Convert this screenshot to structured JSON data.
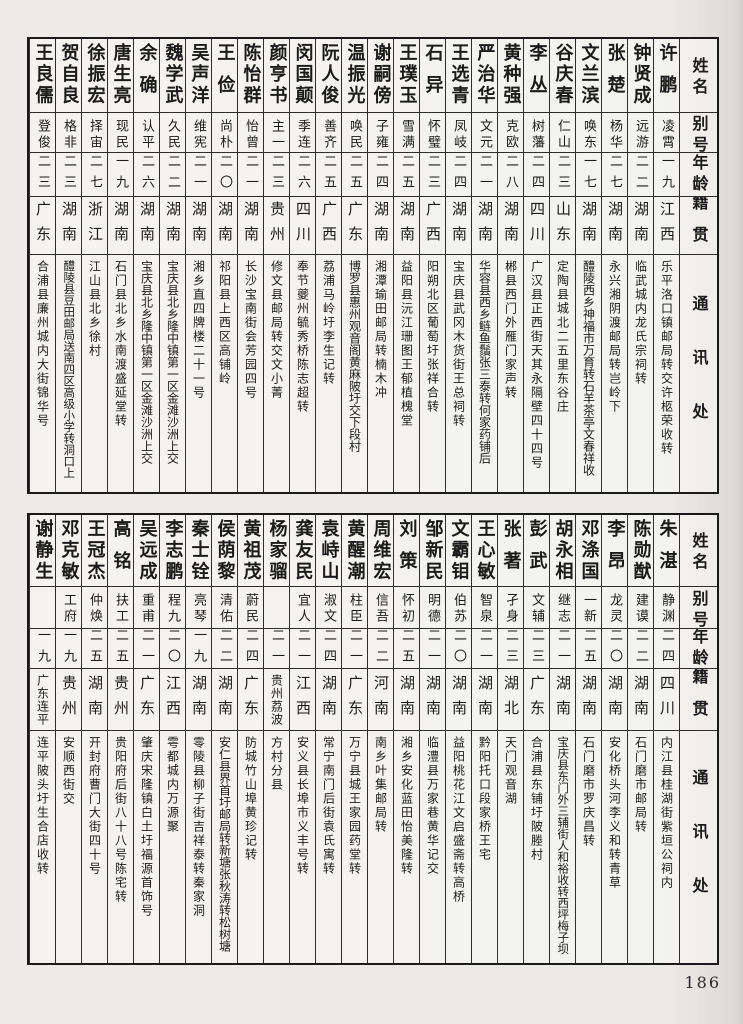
{
  "page": {
    "page_number": "186",
    "headers": [
      "姓名",
      "别号",
      "年龄",
      "籍贯",
      "通讯处"
    ]
  },
  "tables": [
    {
      "entries": [
        {
          "name": "许鹏",
          "alias": "凌霄",
          "age": "一九",
          "origin": "江西",
          "address": "乐平洛口镇邮局转交许柩荣收转"
        },
        {
          "name": "钟贤成",
          "alias": "远游",
          "age": "二二",
          "origin": "湖南",
          "address": "临武城内龙氏宗祠转"
        },
        {
          "name": "张楚",
          "alias": "杨华",
          "age": "二七",
          "origin": "湖南",
          "address": "永兴湘阴渡邮局转岂岭下"
        },
        {
          "name": "文兰滨",
          "alias": "唤东",
          "age": "一七",
          "origin": "湖南",
          "address": "醴陵西乡神福市万育转石羊茶亭文春祥收"
        },
        {
          "name": "谷庆春",
          "alias": "仁山",
          "age": "二三",
          "origin": "山东",
          "address": "定陶县城北二五里东谷庄"
        },
        {
          "name": "李丛",
          "alias": "树藩",
          "age": "二四",
          "origin": "四川",
          "address": "广汉县正西街天其永隔壁四十四号"
        },
        {
          "name": "黄种强",
          "alias": "克欧",
          "age": "二八",
          "origin": "湖南",
          "address": "郴县西门外雁门家声转"
        },
        {
          "name": "严治华",
          "alias": "文元",
          "age": "二一",
          "origin": "湖南",
          "address": "华容县西乡鲢鱼鬚张三泰转何家药铺后"
        },
        {
          "name": "王选青",
          "alias": "凤岐",
          "age": "二四",
          "origin": "湖南",
          "address": "宝庆县武冈木货街王总祠转"
        },
        {
          "name": "石异",
          "alias": "怀璧",
          "age": "二三",
          "origin": "广西",
          "address": "阳朔北区葡萄圩张祥合转"
        },
        {
          "name": "王璞玉",
          "alias": "雪满",
          "age": "二五",
          "origin": "湖南",
          "address": "益阳县沅江珊图王郁植槐堂"
        },
        {
          "name": "谢嗣傍",
          "alias": "子雍",
          "age": "二四",
          "origin": "湖南",
          "address": "湘潭瑜田邮局转楠木冲"
        },
        {
          "name": "温振光",
          "alias": "唤民",
          "age": "二五",
          "origin": "广东",
          "address": "博罗县惠州观音阁黄麻陂圩交下段村"
        },
        {
          "name": "阮人俊",
          "alias": "善齐",
          "age": "二五",
          "origin": "广西",
          "address": "荔浦马岭圩李生记转"
        },
        {
          "name": "闵国颠",
          "alias": "季连",
          "age": "二六",
          "origin": "四川",
          "address": "奉节夔州毓秀桥陈志超转"
        },
        {
          "name": "颜亨书",
          "alias": "主一",
          "age": "二三",
          "origin": "贵州",
          "address": "修文县邮局转交文小菁"
        },
        {
          "name": "陈怡群",
          "alias": "怡曾",
          "age": "二一",
          "origin": "湖南",
          "address": "长沙宝南街会芳园四号"
        },
        {
          "name": "王俭",
          "alias": "尚朴",
          "age": "二〇",
          "origin": "湖南",
          "address": "祁阳县上西区高铺岭"
        },
        {
          "name": "吴声洋",
          "alias": "维宪",
          "age": "二一",
          "origin": "湖南",
          "address": "湘乡直四牌楼二十一号"
        },
        {
          "name": "魏学武",
          "alias": "久民",
          "age": "二二",
          "origin": "湖南",
          "address": "宝庆县北乡隆中镇第一区金滩沙洲上交"
        },
        {
          "name": "余确",
          "alias": "认平",
          "age": "二六",
          "origin": "湖南",
          "address": "宝庆县北乡隆中镇第一区金滩沙洲上交"
        },
        {
          "name": "唐生亮",
          "alias": "现民",
          "age": "一九",
          "origin": "湖南",
          "address": "石门县北乡水南渡盛延堂转"
        },
        {
          "name": "徐振宏",
          "alias": "择宙",
          "age": "二七",
          "origin": "浙江",
          "address": "江山县北乡徐村"
        },
        {
          "name": "贺自良",
          "alias": "格非",
          "age": "二三",
          "origin": "湖南",
          "address": "醴陵县豆田邮局送南四区高级小学转洞口上"
        },
        {
          "name": "王良儒",
          "alias": "登俊",
          "age": "二三",
          "origin": "广东",
          "address": "合浦县廉州城内大街锦华号"
        }
      ]
    },
    {
      "entries": [
        {
          "name": "朱湛",
          "alias": "静渊",
          "age": "二四",
          "origin": "四川",
          "address": "内江县桂湖街紫垣公祠内"
        },
        {
          "name": "陈勋猷",
          "alias": "建谟",
          "age": "二二",
          "origin": "湖南",
          "address": "石门磨市邮局转"
        },
        {
          "name": "李昂",
          "alias": "龙灵",
          "age": "二〇",
          "origin": "湖南",
          "address": "安化桥头河李义和转青草"
        },
        {
          "name": "邓涤国",
          "alias": "一新",
          "age": "二五",
          "origin": "湖南",
          "address": "石门磨市罗庆昌转"
        },
        {
          "name": "胡永相",
          "alias": "继志",
          "age": "二一",
          "origin": "湖南",
          "address": "宝庆县东门外三辅街人和裕收转西坪梅子坝"
        },
        {
          "name": "彭武",
          "alias": "文辅",
          "age": "二三",
          "origin": "广东",
          "address": "合浦县东铺圩陂塍村"
        },
        {
          "name": "张著",
          "alias": "孑身",
          "age": "二三",
          "origin": "湖北",
          "address": "天门观音湖"
        },
        {
          "name": "王心敏",
          "alias": "智泉",
          "age": "二一",
          "origin": "湖南",
          "address": "黔阳托口段家桥王宅"
        },
        {
          "name": "文霸钼",
          "alias": "伯苏",
          "age": "二〇",
          "origin": "湖南",
          "address": "益阳桃花江文启盛斋转高桥"
        },
        {
          "name": "邹新民",
          "alias": "明德",
          "age": "二一",
          "origin": "湖南",
          "address": "临澧县万家巷黄华记交"
        },
        {
          "name": "刘策",
          "alias": "怀初",
          "age": "二五",
          "origin": "湖南",
          "address": "湘乡安化蓝田怡美隆转"
        },
        {
          "name": "周维宏",
          "alias": "信吾",
          "age": "二二",
          "origin": "河南",
          "address": "南乡叶集邮局转"
        },
        {
          "name": "黄醒潮",
          "alias": "柱臣",
          "age": "二一",
          "origin": "广东",
          "address": "万宁县城王家园药堂转"
        },
        {
          "name": "袁峙山",
          "alias": "淑文",
          "age": "二四",
          "origin": "湖南",
          "address": "常宁南门后街袁氏寓转"
        },
        {
          "name": "龚友民",
          "alias": "宜人",
          "age": "二一",
          "origin": "江西",
          "address": "安义县长埠市义丰号转"
        },
        {
          "name": "杨家骝",
          "alias": "",
          "age": "二一",
          "origin": "贵州荔波",
          "address": "方村分县"
        },
        {
          "name": "黄祖茂",
          "alias": "蔚民",
          "age": "二四",
          "origin": "广东",
          "address": "防城竹山埠黄珍记转"
        },
        {
          "name": "侯荫黎",
          "alias": "清佑",
          "age": "二二",
          "origin": "湖南",
          "address": "安仁县界首圩邮局转新塘张秋涛转松树塘"
        },
        {
          "name": "秦士铨",
          "alias": "亮琴",
          "age": "一九",
          "origin": "湖南",
          "address": "零陵县柳子街吉祥泰转秦家洞"
        },
        {
          "name": "李志鹏",
          "alias": "程九",
          "age": "二〇",
          "origin": "江西",
          "address": "雩都城内万源聚"
        },
        {
          "name": "吴远成",
          "alias": "重甫",
          "age": "二一",
          "origin": "广东",
          "address": "肇庆宋隆镇白土圩福源首饰号"
        },
        {
          "name": "高铭",
          "alias": "扶工",
          "age": "二五",
          "origin": "贵州",
          "address": "贵阳府后街八十八号陈宅转"
        },
        {
          "name": "王冠杰",
          "alias": "仲焕",
          "age": "二五",
          "origin": "湖南",
          "address": "开封府曹门大街四十号"
        },
        {
          "name": "邓克敏",
          "alias": "工府",
          "age": "一九",
          "origin": "贵州",
          "address": "安顺西街交"
        },
        {
          "name": "谢静生",
          "alias": "",
          "age": "一九",
          "origin": "广东连平",
          "address": "连平陂头圩生合店收转"
        }
      ]
    }
  ]
}
